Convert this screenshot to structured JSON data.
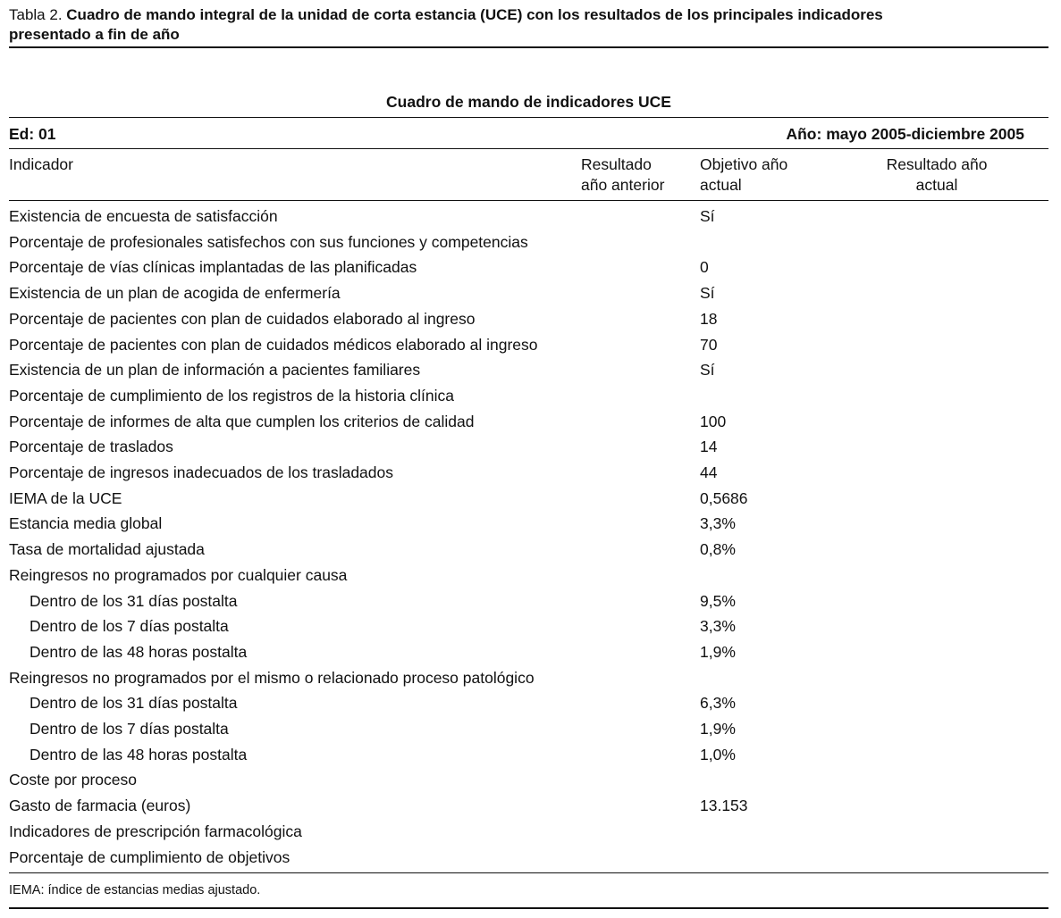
{
  "caption": {
    "label": "Tabla 2.",
    "title": "Cuadro de mando integral de la unidad de corta estancia (UCE) con los resultados de los principales indicadores presentado a fin de año"
  },
  "table": {
    "title": "Cuadro de mando de indicadores UCE",
    "edition": "Ed: 01",
    "period": "Año: mayo 2005-diciembre 2005",
    "columns": [
      "Indicador",
      "Resultado año anterior",
      "Objetivo año actual",
      "Resultado año actual"
    ],
    "rows": [
      {
        "indicador": "Existencia de encuesta de satisfacción",
        "objetivo": "Sí"
      },
      {
        "indicador": "Porcentaje de profesionales satisfechos con sus funciones y competencias"
      },
      {
        "indicador": "Porcentaje de vías clínicas implantadas de las planificadas",
        "objetivo": "0"
      },
      {
        "indicador": "Existencia de un plan de acogida de enfermería",
        "objetivo": "Sí"
      },
      {
        "indicador": "Porcentaje de pacientes con plan de cuidados elaborado al ingreso",
        "objetivo": "18"
      },
      {
        "indicador": "Porcentaje de pacientes con plan de cuidados médicos elaborado al ingreso",
        "objetivo": "70"
      },
      {
        "indicador": "Existencia de un plan de información a pacientes familiares",
        "objetivo": "Sí"
      },
      {
        "indicador": "Porcentaje de cumplimiento de los registros de la historia clínica"
      },
      {
        "indicador": "Porcentaje de informes de alta que cumplen los criterios de calidad",
        "objetivo": "100"
      },
      {
        "indicador": "Porcentaje de traslados",
        "objetivo": "14"
      },
      {
        "indicador": "Porcentaje de ingresos inadecuados de los trasladados",
        "objetivo": "44"
      },
      {
        "indicador": "IEMA de la UCE",
        "objetivo": "0,5686"
      },
      {
        "indicador": "Estancia media global",
        "objetivo": "3,3%"
      },
      {
        "indicador": "Tasa de mortalidad ajustada",
        "objetivo": "0,8%"
      },
      {
        "indicador": "Reingresos no programados por cualquier causa",
        "subrows": [
          {
            "indicador": "Dentro de los 31 días postalta",
            "objetivo": "9,5%"
          },
          {
            "indicador": "Dentro de los 7 días postalta",
            "objetivo": "3,3%"
          },
          {
            "indicador": "Dentro de las 48 horas postalta",
            "objetivo": "1,9%"
          }
        ]
      },
      {
        "indicador": "Reingresos no programados por el mismo o relacionado proceso patológico",
        "subrows": [
          {
            "indicador": "Dentro de los 31 días postalta",
            "objetivo": "6,3%"
          },
          {
            "indicador": "Dentro de los 7 días postalta",
            "objetivo": "1,9%"
          },
          {
            "indicador": "Dentro de las 48 horas postalta",
            "objetivo": "1,0%"
          }
        ]
      },
      {
        "indicador": "Coste por proceso"
      },
      {
        "indicador": "Gasto de farmacia (euros)",
        "objetivo": "13.153"
      },
      {
        "indicador": "Indicadores de prescripción farmacológica"
      },
      {
        "indicador": "Porcentaje de cumplimiento de objetivos"
      }
    ]
  },
  "footnote": "IEMA: índice de estancias medias ajustado."
}
